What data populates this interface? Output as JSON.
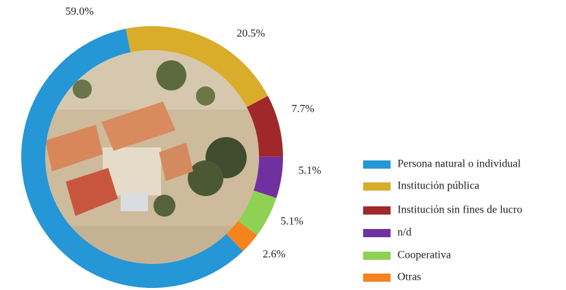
{
  "chart_data": {
    "type": "donut",
    "categories": [
      "Persona natural o individual",
      "Institución pública",
      "Institución sin fines de lucro",
      "n/d",
      "Cooperativa",
      "Otras"
    ],
    "values": [
      59.0,
      20.5,
      7.7,
      5.1,
      5.1,
      2.6
    ],
    "value_labels": [
      "59.0%",
      "20.5%",
      "7.7%",
      "5.1%",
      "5.1%",
      "2.6%"
    ],
    "colors": [
      "#2596d6",
      "#d9ad29",
      "#a0282a",
      "#7030a0",
      "#8fd152",
      "#f5841f"
    ],
    "legend": "right"
  }
}
